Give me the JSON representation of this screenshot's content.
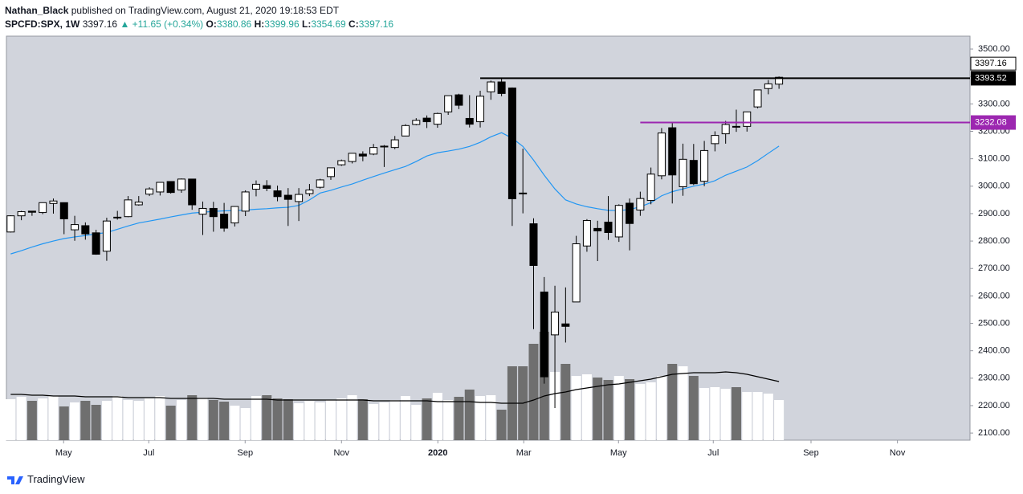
{
  "header": {
    "publisher": "Nathan_Black",
    "published": "published on TradingView.com, August 21, 2020 19:18:53 EDT",
    "symbol": "SPCFD:SPX, 1W",
    "price": "3397.16",
    "change": "▲ +11.65 (+0.34%)",
    "ohlc": [
      {
        "label": "O:",
        "value": "3380.86"
      },
      {
        "label": "H:",
        "value": "3399.96"
      },
      {
        "label": "L:",
        "value": "3354.69"
      },
      {
        "label": "C:",
        "value": "3397.16"
      }
    ]
  },
  "footer": {
    "brand": "TradingView"
  },
  "chart_data": {
    "type": "candlestick",
    "xlim": [
      -0.4,
      89.9
    ],
    "ylim": [
      2074,
      3547
    ],
    "xticks": [
      {
        "value": 4.96,
        "label": "May"
      },
      {
        "value": 12.94,
        "label": "Jul"
      },
      {
        "value": 21.97,
        "label": "Sep"
      },
      {
        "value": 31.0,
        "label": "Nov"
      },
      {
        "value": 40.03,
        "label": "2020"
      },
      {
        "value": 48.08,
        "label": "Mar"
      },
      {
        "value": 56.96,
        "label": "May"
      },
      {
        "value": 65.84,
        "label": "Jul"
      },
      {
        "value": 75.0,
        "label": "Sep"
      },
      {
        "value": 83.1,
        "label": "Nov"
      }
    ],
    "yticks": [
      {
        "value": 2100,
        "label": "2100.00"
      },
      {
        "value": 2200,
        "label": "2200.00"
      },
      {
        "value": 2300,
        "label": "2300.00"
      },
      {
        "value": 2400,
        "label": "2400.00"
      },
      {
        "value": 2500,
        "label": "2500.00"
      },
      {
        "value": 2600,
        "label": "2600.00"
      },
      {
        "value": 2700,
        "label": "2700.00"
      },
      {
        "value": 2800,
        "label": "2800.00"
      },
      {
        "value": 2900,
        "label": "2900.00"
      },
      {
        "value": 3000,
        "label": "3000.00"
      },
      {
        "value": 3100,
        "label": "3100.00"
      },
      {
        "value": 3200,
        "label": "3200.00"
      },
      {
        "value": 3300,
        "label": "3300.00"
      },
      {
        "value": 3400,
        "label": "3400.00"
      },
      {
        "value": 3500,
        "label": "3500.00"
      }
    ],
    "up_color": "#ffffff",
    "down_color": "#000000",
    "candles": [
      [
        2833,
        2894,
        2831,
        2892
      ],
      [
        2892,
        2910,
        2876,
        2907
      ],
      [
        2909,
        2909,
        2892,
        2905
      ],
      [
        2904,
        2940,
        2898,
        2940
      ],
      [
        2937,
        2955,
        2900,
        2946
      ],
      [
        2940,
        2941,
        2825,
        2881
      ],
      [
        2841,
        2892,
        2801,
        2860
      ],
      [
        2856,
        2868,
        2805,
        2826
      ],
      [
        2830,
        2841,
        2750,
        2752
      ],
      [
        2763,
        2885,
        2728,
        2873
      ],
      [
        2886,
        2910,
        2878,
        2887
      ],
      [
        2889,
        2964,
        2887,
        2950
      ],
      [
        2932,
        2964,
        2929,
        2942
      ],
      [
        2971,
        2996,
        2964,
        2990
      ],
      [
        2979,
        3014,
        2966,
        3014
      ],
      [
        3017,
        3018,
        2973,
        2977
      ],
      [
        2986,
        3028,
        2976,
        3026
      ],
      [
        3026,
        3027,
        2914,
        2932
      ],
      [
        2898,
        2944,
        2822,
        2919
      ],
      [
        2919,
        2943,
        2834,
        2889
      ],
      [
        2898,
        2939,
        2834,
        2847
      ],
      [
        2866,
        2927,
        2853,
        2926
      ],
      [
        2909,
        2985,
        2891,
        2979
      ],
      [
        2989,
        3021,
        2963,
        3007
      ],
      [
        3002,
        3022,
        2982,
        2992
      ],
      [
        2983,
        3002,
        2945,
        2962
      ],
      [
        2967,
        2993,
        2855,
        2952
      ],
      [
        2944,
        2993,
        2873,
        2970
      ],
      [
        2973,
        3008,
        2964,
        2986
      ],
      [
        2996,
        3027,
        2991,
        3023
      ],
      [
        3035,
        3066,
        3023,
        3067
      ],
      [
        3078,
        3097,
        3074,
        3093
      ],
      [
        3090,
        3120,
        3083,
        3120
      ],
      [
        3117,
        3127,
        3091,
        3110
      ],
      [
        3117,
        3154,
        3113,
        3141
      ],
      [
        3143,
        3150,
        3070,
        3146
      ],
      [
        3141,
        3183,
        3135,
        3169
      ],
      [
        3183,
        3226,
        3183,
        3221
      ],
      [
        3225,
        3248,
        3222,
        3240
      ],
      [
        3248,
        3258,
        3212,
        3235
      ],
      [
        3226,
        3268,
        3213,
        3265
      ],
      [
        3271,
        3330,
        3260,
        3330
      ],
      [
        3333,
        3337,
        3281,
        3295
      ],
      [
        3247,
        3332,
        3214,
        3226
      ],
      [
        3235,
        3348,
        3214,
        3328
      ],
      [
        3344,
        3385,
        3315,
        3380
      ],
      [
        3380,
        3393,
        3328,
        3338
      ],
      [
        3358,
        3360,
        2855,
        2954
      ],
      [
        2975,
        3137,
        2901,
        2972
      ],
      [
        2863,
        2883,
        2479,
        2711
      ],
      [
        2614,
        2669,
        2280,
        2305
      ],
      [
        2458,
        2637,
        2191,
        2541
      ],
      [
        2498,
        2631,
        2430,
        2489
      ],
      [
        2578,
        2819,
        2578,
        2790
      ],
      [
        2782,
        2880,
        2761,
        2875
      ],
      [
        2846,
        2874,
        2727,
        2837
      ],
      [
        2869,
        2964,
        2804,
        2831
      ],
      [
        2815,
        2934,
        2797,
        2930
      ],
      [
        2938,
        2955,
        2766,
        2864
      ],
      [
        2913,
        2980,
        2892,
        2955
      ],
      [
        2948,
        3068,
        2934,
        3044
      ],
      [
        3038,
        3212,
        3025,
        3194
      ],
      [
        3213,
        3233,
        2937,
        3041
      ],
      [
        2998,
        3155,
        2965,
        3098
      ],
      [
        3094,
        3154,
        3004,
        3009
      ],
      [
        3018,
        3165,
        3000,
        3130
      ],
      [
        3155,
        3200,
        3127,
        3185
      ],
      [
        3191,
        3238,
        3155,
        3225
      ],
      [
        3218,
        3279,
        3198,
        3216
      ],
      [
        3218,
        3272,
        3199,
        3271
      ],
      [
        3289,
        3352,
        3284,
        3351
      ],
      [
        3356,
        3387,
        3335,
        3373
      ],
      [
        3372,
        3400,
        3355,
        3397
      ]
    ],
    "ma": {
      "color": "#2196f3",
      "values": [
        2753,
        2765,
        2778,
        2790,
        2800,
        2809,
        2815,
        2820,
        2826,
        2831,
        2843,
        2855,
        2866,
        2873,
        2880,
        2888,
        2895,
        2902,
        2905,
        2908,
        2910,
        2911,
        2913,
        2916,
        2918,
        2921,
        2923,
        2930,
        2950,
        2975,
        2985,
        2997,
        3008,
        3022,
        3035,
        3048,
        3060,
        3072,
        3090,
        3110,
        3122,
        3128,
        3135,
        3145,
        3160,
        3180,
        3195,
        3175,
        3145,
        3095,
        3040,
        2990,
        2950,
        2935,
        2925,
        2918,
        2912,
        2911,
        2915,
        2925,
        2940,
        2965,
        2980,
        2990,
        3000,
        3008,
        3020,
        3040,
        3055,
        3070,
        3093,
        3120,
        3146
      ]
    },
    "vlim": [
      0,
      300
    ],
    "volume_up_color": "#ffffff",
    "volume_down_color": "#6f6f6f",
    "volume": [
      51,
      54,
      49,
      52,
      55,
      42,
      47,
      49,
      44,
      49,
      55,
      50,
      49,
      52,
      55,
      43,
      50,
      56,
      53,
      50,
      48,
      43,
      40,
      55,
      56,
      52,
      51,
      46,
      49,
      47,
      50,
      52,
      56,
      51,
      45,
      47,
      50,
      55,
      44,
      52,
      59,
      50,
      54,
      63,
      55,
      56,
      38,
      92,
      92,
      120,
      135,
      85,
      95,
      80,
      82,
      78,
      75,
      80,
      76,
      70,
      72,
      80,
      95,
      92,
      80,
      65,
      66,
      64,
      66,
      60,
      60,
      58,
      50
    ],
    "volume_ma": {
      "color": "#000000",
      "values": [
        57,
        57,
        56,
        56,
        55,
        55,
        55,
        54,
        54,
        54,
        54,
        53,
        53,
        53,
        53,
        52,
        52,
        52,
        52,
        52,
        51,
        51,
        51,
        51,
        51,
        50,
        50,
        50,
        50,
        50,
        50,
        50,
        50,
        50,
        49,
        49,
        49,
        49,
        49,
        49,
        48,
        48,
        48,
        48,
        47,
        47,
        46,
        46,
        46,
        50,
        55,
        58,
        60,
        63,
        65,
        67,
        69,
        70,
        72,
        74,
        76,
        79,
        82,
        83,
        84,
        84,
        84,
        85,
        84,
        82,
        79,
        76,
        73
      ]
    },
    "levels": [
      {
        "value": 3393.52,
        "color": "#000000",
        "start": 44
      },
      {
        "value": 3232.08,
        "color": "#9c27b0",
        "start": 59
      }
    ],
    "last_price": 3397.16
  }
}
